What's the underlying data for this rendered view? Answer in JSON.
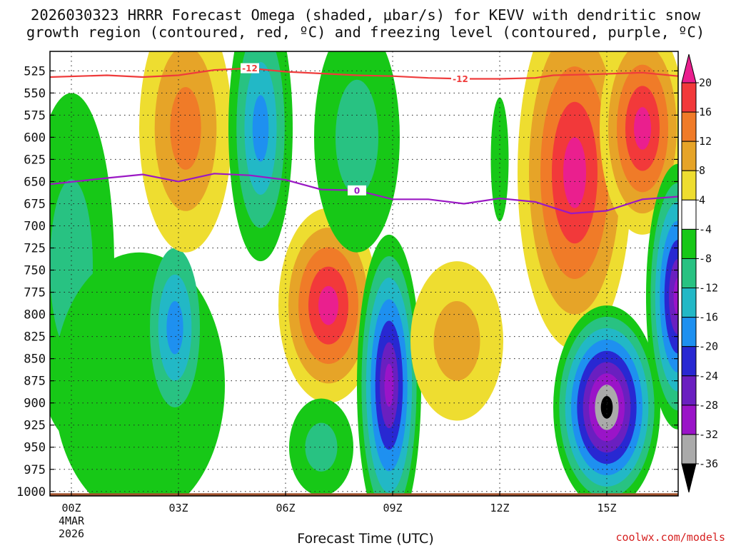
{
  "chart_data": {
    "type": "heatmap",
    "title_line1": "2026030323 HRRR Forecast Omega (shaded, μbar/s) for KEVV with dendritic snow",
    "title_line2": "growth region (contoured, red, ºC) and freezing level (contoured, purple, ºC)",
    "xlabel": "Forecast Time (UTC)",
    "ylabel": "",
    "y_ticks": [
      "525",
      "550",
      "575",
      "600",
      "625",
      "650",
      "675",
      "700",
      "725",
      "750",
      "775",
      "800",
      "825",
      "850",
      "875",
      "900",
      "925",
      "950",
      "975",
      "1000"
    ],
    "x_ticks": [
      {
        "hour": 0,
        "label": "00Z"
      },
      {
        "hour": 3,
        "label": "03Z"
      },
      {
        "hour": 6,
        "label": "06Z"
      },
      {
        "hour": 9,
        "label": "09Z"
      },
      {
        "hour": 12,
        "label": "12Z"
      },
      {
        "hour": 15,
        "label": "15Z"
      }
    ],
    "x_date_line1": "4MAR",
    "x_date_line2": "2026",
    "x_range_hours": [
      -0.6,
      17
    ],
    "y_range_hPa": [
      503,
      1005
    ],
    "colorbar": {
      "labels": [
        "20",
        "16",
        "12",
        "8",
        "4",
        "-4",
        "-8",
        "-12",
        "-16",
        "-20",
        "-24",
        "-28",
        "-32",
        "-36"
      ],
      "colors": {
        "gt20": "#ea1f8e",
        "16_20": "#f2393a",
        "12_16": "#f07b28",
        "8_12": "#e6a428",
        "4_8": "#eedd30",
        "m4_4": "#ffffff",
        "m8_m4": "#17c817",
        "m12_m8": "#28c282",
        "m16_m12": "#22b8c6",
        "m20_m16": "#1e90f0",
        "m24_m20": "#2828d2",
        "m28_m24": "#6a1fc0",
        "m32_m28": "#9a14c8",
        "m36_m32": "#aaaaaa",
        "lt36": "#000000"
      }
    },
    "omega_features": [
      {
        "name": "left column green",
        "cx": 0.0,
        "cy": 745,
        "rx": 1.2,
        "ry": 195,
        "levels": [
          "m8_m4",
          "m12_m8"
        ]
      },
      {
        "name": "low-left green",
        "cx": 1.9,
        "cy": 880,
        "rx": 2.4,
        "ry": 150,
        "levels": [
          "m8_m4"
        ]
      },
      {
        "name": "low-left cyan",
        "cx": 2.9,
        "cy": 815,
        "rx": 0.7,
        "ry": 90,
        "levels": [
          "m12_m8",
          "m16_m12",
          "m20_m16"
        ]
      },
      {
        "name": "upper yellow 03Z",
        "cx": 3.2,
        "cy": 590,
        "rx": 1.3,
        "ry": 140,
        "levels": [
          "4_8",
          "8_12",
          "12_16"
        ]
      },
      {
        "name": "upper green 05Z",
        "cx": 5.3,
        "cy": 590,
        "rx": 0.9,
        "ry": 150,
        "levels": [
          "m8_m4",
          "m12_m8",
          "m16_m12",
          "m20_m16"
        ]
      },
      {
        "name": "07Z positive",
        "cx": 7.2,
        "cy": 790,
        "rx": 1.4,
        "ry": 110,
        "levels": [
          "4_8",
          "8_12",
          "12_16",
          "16_20",
          "gt20"
        ]
      },
      {
        "name": "upper green 08Z",
        "cx": 8.0,
        "cy": 600,
        "rx": 1.2,
        "ry": 130,
        "levels": [
          "m8_m4",
          "m12_m8"
        ]
      },
      {
        "name": "09Z negative",
        "cx": 8.9,
        "cy": 880,
        "rx": 0.9,
        "ry": 170,
        "levels": [
          "m8_m4",
          "m12_m8",
          "m16_m12",
          "m20_m16",
          "m24_m20",
          "m28_m24",
          "m32_m28"
        ]
      },
      {
        "name": "07Z low green",
        "cx": 7.0,
        "cy": 950,
        "rx": 0.9,
        "ry": 55,
        "levels": [
          "m8_m4",
          "m12_m8"
        ]
      },
      {
        "name": "11Z yellow",
        "cx": 10.8,
        "cy": 830,
        "rx": 1.3,
        "ry": 90,
        "levels": [
          "4_8",
          "8_12"
        ]
      },
      {
        "name": "12Z small green",
        "cx": 12.0,
        "cy": 625,
        "rx": 0.25,
        "ry": 70,
        "levels": [
          "m8_m4"
        ]
      },
      {
        "name": "14Z big positive",
        "cx": 14.1,
        "cy": 640,
        "rx": 1.6,
        "ry": 200,
        "levels": [
          "4_8",
          "8_12",
          "12_16",
          "16_20",
          "gt20"
        ]
      },
      {
        "name": "16Z upper positive",
        "cx": 16.0,
        "cy": 590,
        "rx": 1.2,
        "ry": 120,
        "levels": [
          "4_8",
          "8_12",
          "12_16",
          "16_20",
          "gt20"
        ]
      },
      {
        "name": "15Z strong negative",
        "cx": 15.0,
        "cy": 905,
        "rx": 1.5,
        "ry": 115,
        "levels": [
          "m8_m4",
          "m12_m8",
          "m16_m12",
          "m20_m16",
          "m24_m20",
          "m28_m24",
          "m32_m28",
          "m36_m32",
          "lt36"
        ]
      },
      {
        "name": "right edge negative",
        "cx": 17.0,
        "cy": 780,
        "rx": 0.9,
        "ry": 150,
        "levels": [
          "m8_m4",
          "m12_m8",
          "m16_m12",
          "m20_m16",
          "m24_m20",
          "m28_m24",
          "m32_m28"
        ]
      }
    ],
    "dgz_contour": {
      "label": "-12",
      "color": "#ef3b3b",
      "points": [
        [
          -0.6,
          532
        ],
        [
          1.0,
          530
        ],
        [
          2.0,
          532
        ],
        [
          3.0,
          530
        ],
        [
          4.0,
          524
        ],
        [
          5.0,
          522
        ],
        [
          6.0,
          526
        ],
        [
          7.0,
          528
        ],
        [
          8.0,
          530
        ],
        [
          9.0,
          531
        ],
        [
          10.0,
          533
        ],
        [
          11.0,
          534
        ],
        [
          12.0,
          534
        ],
        [
          13.0,
          533
        ],
        [
          13.5,
          530
        ],
        [
          14.5,
          529
        ],
        [
          16.0,
          527
        ],
        [
          17.0,
          531
        ]
      ]
    },
    "freezing_contour": {
      "label": "0",
      "color": "#9a18c4",
      "points": [
        [
          -0.6,
          653
        ],
        [
          1.0,
          646
        ],
        [
          2.0,
          642
        ],
        [
          3.0,
          650
        ],
        [
          4.0,
          641
        ],
        [
          5.0,
          643
        ],
        [
          6.0,
          648
        ],
        [
          7.0,
          659
        ],
        [
          8.0,
          660
        ],
        [
          9.0,
          670
        ],
        [
          10.0,
          670
        ],
        [
          11.0,
          675
        ],
        [
          12.0,
          669
        ],
        [
          13.0,
          673
        ],
        [
          14.0,
          686
        ],
        [
          15.0,
          683
        ],
        [
          16.0,
          670
        ],
        [
          17.0,
          667
        ]
      ]
    },
    "ground_level_hPa": 1002
  },
  "credit": "coolwx.com/models"
}
